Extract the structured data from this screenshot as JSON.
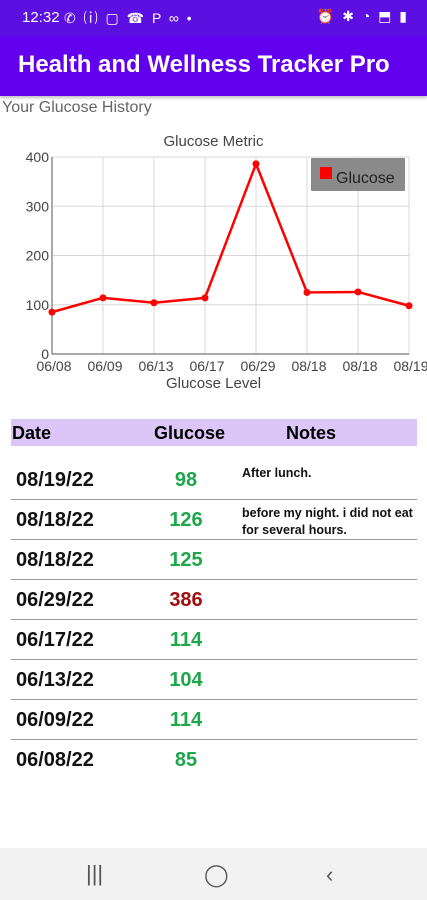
{
  "status_bar": {
    "time": "12:32",
    "left_icons": "✆ ⒤ ▢ ☎ P ∞ •",
    "right_icons": "⏰ ✱ ◔ ⬒ ▮"
  },
  "app_bar": {
    "title": "Health and Wellness Tracker Pro"
  },
  "subtitle": "Your Glucose History",
  "chart_data": {
    "type": "line",
    "title": "Glucose Metric",
    "xlabel": "Glucose Level",
    "ylabel": "",
    "x": [
      "06/08",
      "06/09",
      "06/13",
      "06/17",
      "06/29",
      "08/18",
      "08/18",
      "08/19"
    ],
    "x_tick_labels": [
      "06/08",
      "06/09",
      "06/13",
      "06/17",
      "06/29",
      "08/18",
      "08/18",
      "08/19"
    ],
    "series": [
      {
        "name": "Glucose",
        "color": "#ff0000",
        "values": [
          85,
          114,
          104,
          114,
          386,
          125,
          126,
          98
        ]
      }
    ],
    "ylim": [
      0,
      400
    ],
    "yticks": [
      0,
      100,
      200,
      300,
      400
    ],
    "grid": true,
    "legend_position": "top-right"
  },
  "table": {
    "headers": {
      "date": "Date",
      "glucose": "Glucose",
      "notes": "Notes"
    },
    "rows": [
      {
        "date": "08/19/22",
        "glucose": "98",
        "notes": "After lunch.",
        "status": "normal"
      },
      {
        "date": "08/18/22",
        "glucose": "126",
        "notes": "before my night. i did not eat for several hours.",
        "status": "normal"
      },
      {
        "date": "08/18/22",
        "glucose": "125",
        "notes": "",
        "status": "normal"
      },
      {
        "date": "06/29/22",
        "glucose": "386",
        "notes": "",
        "status": "high"
      },
      {
        "date": "06/17/22",
        "glucose": "114",
        "notes": "",
        "status": "normal"
      },
      {
        "date": "06/13/22",
        "glucose": "104",
        "notes": "",
        "status": "normal"
      },
      {
        "date": "06/09/22",
        "glucose": "114",
        "notes": "",
        "status": "normal"
      },
      {
        "date": "06/08/22",
        "glucose": "85",
        "notes": "",
        "status": "normal"
      }
    ]
  },
  "colors": {
    "app_bar": "#6200ee",
    "status_bar": "#5b0fe0",
    "header_row": "#dcc6f7",
    "normal": "#1ea64a",
    "high": "#a00f0f"
  },
  "nav": {
    "recents_icon": "|||",
    "home_icon": "◯",
    "back_icon": "‹"
  }
}
